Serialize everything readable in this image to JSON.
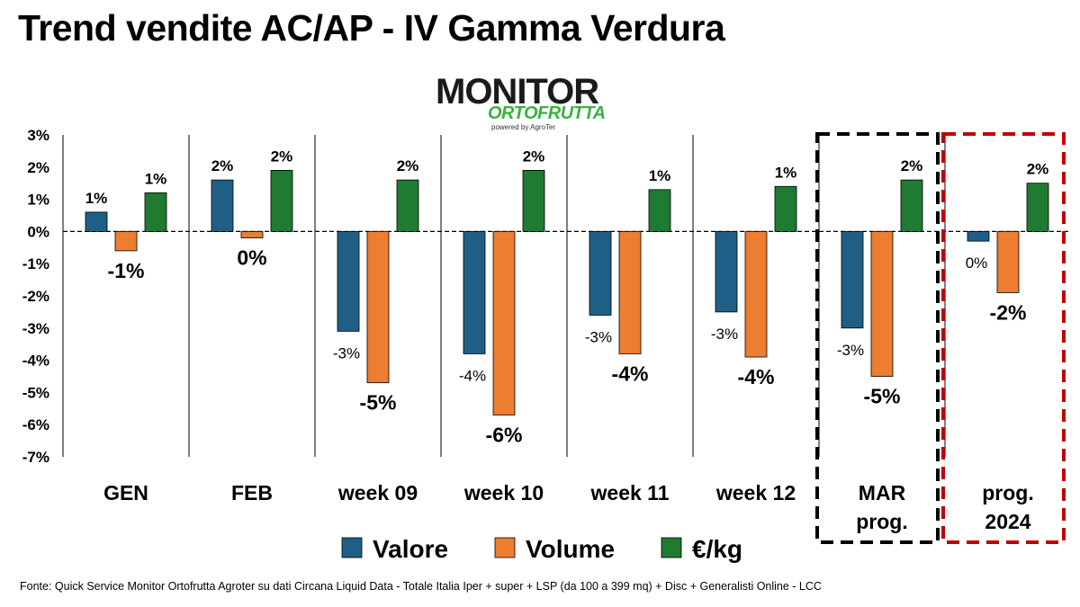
{
  "title": "Trend vendite AC/AP - IV Gamma Verdura",
  "logo": {
    "brand": "MONITOR",
    "sub": "ORTOFRUTTA",
    "powered": "powered by AgroTer"
  },
  "footer": "Fonte: Quick Service Monitor Ortofrutta Agroter su dati Circana Liquid Data - Totale Italia Iper + super + LSP (da 100 a 399 mq) + Disc + Generalisti Online - LCC",
  "colors": {
    "valore": "#1f5f86",
    "volume": "#ed7d31",
    "eurkg": "#1f7a32",
    "box_mar": "#000000",
    "box_prog": "#c00000"
  },
  "chart_data": {
    "type": "bar",
    "categories": [
      "GEN",
      "FEB",
      "week 09",
      "week 10",
      "week 11",
      "week 12",
      "MAR\nprog.",
      "prog.\n2024"
    ],
    "ylim": [
      -0.07,
      0.03
    ],
    "yticks": [
      "3%",
      "2%",
      "1%",
      "0%",
      "-1%",
      "-2%",
      "-3%",
      "-4%",
      "-5%",
      "-6%",
      "-7%"
    ],
    "series": [
      {
        "name": "Valore",
        "values": [
          0.006,
          0.016,
          -0.031,
          -0.038,
          -0.026,
          -0.025,
          -0.03,
          -0.003
        ],
        "labels": [
          "1%",
          "2%",
          "-3%",
          "-4%",
          "-3%",
          "-3%",
          "-3%",
          "0%"
        ]
      },
      {
        "name": "Volume",
        "values": [
          -0.006,
          -0.002,
          -0.047,
          -0.057,
          -0.038,
          -0.039,
          -0.045,
          -0.019
        ],
        "labels": [
          "-1%",
          "0%",
          "-5%",
          "-6%",
          "-4%",
          "-4%",
          "-5%",
          "-2%"
        ]
      },
      {
        "name": "€/kg",
        "values": [
          0.012,
          0.019,
          0.016,
          0.019,
          0.013,
          0.014,
          0.016,
          0.015
        ],
        "labels": [
          "1%",
          "2%",
          "2%",
          "2%",
          "1%",
          "1%",
          "2%",
          "2%"
        ]
      }
    ],
    "legend": "bottom",
    "highlighted_groups": [
      "MAR\nprog.",
      "prog.\n2024"
    ]
  }
}
